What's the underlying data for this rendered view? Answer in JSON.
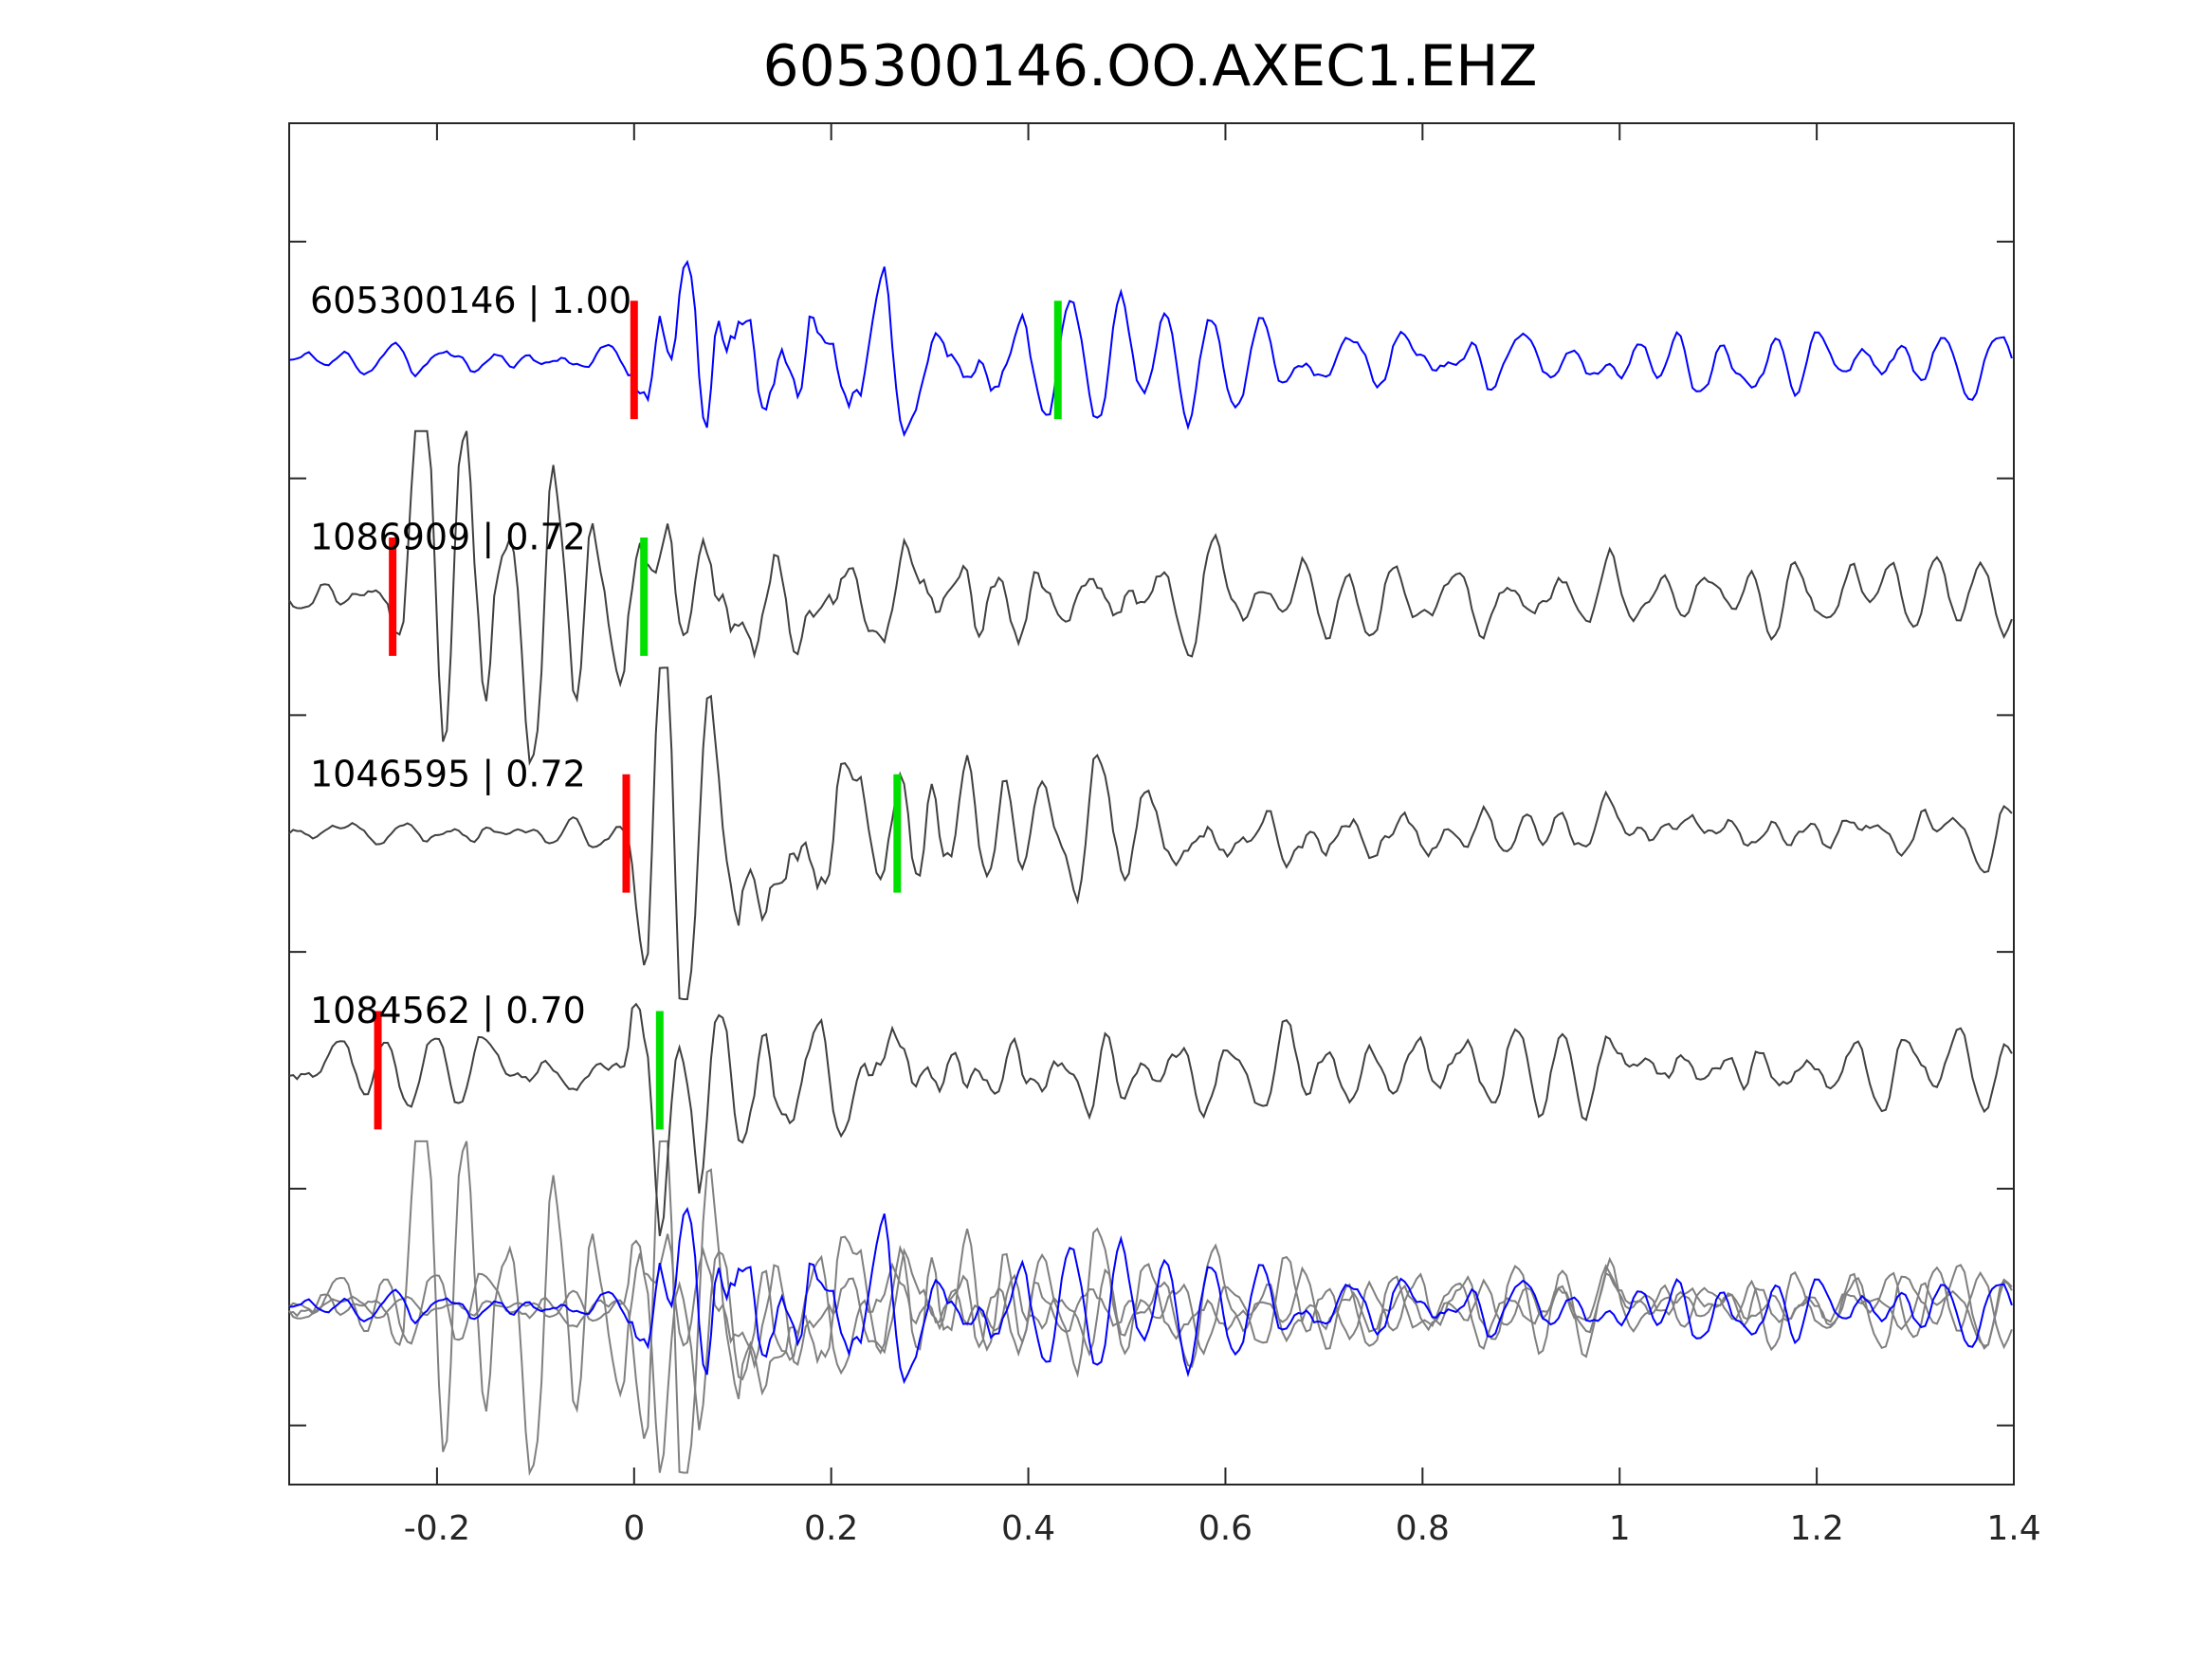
{
  "chart_data": {
    "type": "line",
    "title": "605300146.OO.AXEC1.EHZ",
    "xlabel": "",
    "ylabel": "",
    "xlim": [
      -0.35,
      1.4
    ],
    "ylim": [
      0.25,
      6
    ],
    "x_ticks": [
      -0.2,
      0,
      0.2,
      0.4,
      0.6,
      0.8,
      1,
      1.2,
      1.4
    ],
    "x_tick_labels": [
      "-0.2",
      "0",
      "0.2",
      "0.4",
      "0.6",
      "0.8",
      "1",
      "1.2",
      "1.4"
    ],
    "y_ticks": [
      0.5,
      1.5,
      2.5,
      3.5,
      4.5,
      5.5
    ],
    "grid": false,
    "traces": [
      {
        "label": "605300146 | 1.00",
        "offset": 5,
        "color": "#0000ff",
        "p_pick": 0.0,
        "s_pick": 0.43,
        "onset": 0.0,
        "amp": 0.5,
        "tau": 0.22,
        "noise": 0.06,
        "seed": 11,
        "align_shift": 0.0
      },
      {
        "label": "1086909 | 0.72",
        "offset": 4,
        "color": "#404040",
        "p_pick": -0.245,
        "s_pick": 0.01,
        "onset": -0.25,
        "amp": 0.42,
        "tau": 0.35,
        "noise": 0.05,
        "seed": 23,
        "align_shift": 0.0
      },
      {
        "label": "1046595 | 0.72",
        "offset": 3,
        "color": "#404040",
        "p_pick": -0.008,
        "s_pick": 0.267,
        "onset": -0.005,
        "amp": 0.45,
        "tau": 0.3,
        "noise": 0.04,
        "seed": 37,
        "align_shift": 0.0
      },
      {
        "label": "1084562 | 0.70",
        "offset": 2,
        "color": "#404040",
        "p_pick": -0.26,
        "s_pick": 0.026,
        "onset": -0.01,
        "amp": 0.45,
        "tau": 0.12,
        "noise": 0.07,
        "seed": 53,
        "align_shift": 0.0
      }
    ],
    "stack": {
      "offset": 1,
      "overlay_color": "#808080",
      "reference_color": "#0000ff"
    },
    "pick_colors": {
      "p": "#ff0000",
      "s": "#00e000"
    }
  }
}
